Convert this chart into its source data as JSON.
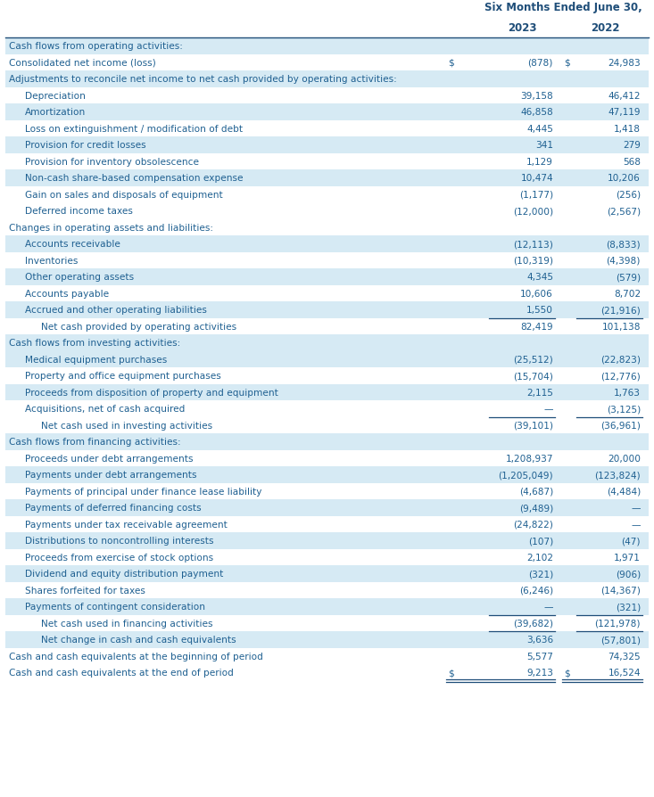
{
  "title_line1": "Six Months Ended June 30,",
  "col1_header": "2023",
  "col2_header": "2022",
  "text_color": "#1F6091",
  "header_color": "#1F4E79",
  "highlight_bg": "#D6EAF4",
  "white_bg": "#FFFFFF",
  "rows": [
    {
      "label": "Cash flows from operating activities:",
      "val1": "",
      "val2": "",
      "indent": 0,
      "highlight": true,
      "top_border": false,
      "bottom_border": false,
      "double_bottom": false,
      "dollar1": false,
      "dollar2": false
    },
    {
      "label": "Consolidated net income (loss)",
      "val1": "(878)",
      "val2": "24,983",
      "indent": 0,
      "highlight": false,
      "top_border": false,
      "bottom_border": false,
      "double_bottom": false,
      "dollar1": true,
      "dollar2": true
    },
    {
      "label": "Adjustments to reconcile net income to net cash provided by operating activities:",
      "val1": "",
      "val2": "",
      "indent": 0,
      "highlight": true,
      "top_border": false,
      "bottom_border": false,
      "double_bottom": false,
      "dollar1": false,
      "dollar2": false
    },
    {
      "label": "Depreciation",
      "val1": "39,158",
      "val2": "46,412",
      "indent": 1,
      "highlight": false,
      "top_border": false,
      "bottom_border": false,
      "double_bottom": false,
      "dollar1": false,
      "dollar2": false
    },
    {
      "label": "Amortization",
      "val1": "46,858",
      "val2": "47,119",
      "indent": 1,
      "highlight": true,
      "top_border": false,
      "bottom_border": false,
      "double_bottom": false,
      "dollar1": false,
      "dollar2": false
    },
    {
      "label": "Loss on extinguishment / modification of debt",
      "val1": "4,445",
      "val2": "1,418",
      "indent": 1,
      "highlight": false,
      "top_border": false,
      "bottom_border": false,
      "double_bottom": false,
      "dollar1": false,
      "dollar2": false
    },
    {
      "label": "Provision for credit losses",
      "val1": "341",
      "val2": "279",
      "indent": 1,
      "highlight": true,
      "top_border": false,
      "bottom_border": false,
      "double_bottom": false,
      "dollar1": false,
      "dollar2": false
    },
    {
      "label": "Provision for inventory obsolescence",
      "val1": "1,129",
      "val2": "568",
      "indent": 1,
      "highlight": false,
      "top_border": false,
      "bottom_border": false,
      "double_bottom": false,
      "dollar1": false,
      "dollar2": false
    },
    {
      "label": "Non-cash share-based compensation expense",
      "val1": "10,474",
      "val2": "10,206",
      "indent": 1,
      "highlight": true,
      "top_border": false,
      "bottom_border": false,
      "double_bottom": false,
      "dollar1": false,
      "dollar2": false
    },
    {
      "label": "Gain on sales and disposals of equipment",
      "val1": "(1,177)",
      "val2": "(256)",
      "indent": 1,
      "highlight": false,
      "top_border": false,
      "bottom_border": false,
      "double_bottom": false,
      "dollar1": false,
      "dollar2": false
    },
    {
      "label": "Deferred income taxes",
      "val1": "(12,000)",
      "val2": "(2,567)",
      "indent": 1,
      "highlight": false,
      "top_border": false,
      "bottom_border": false,
      "double_bottom": false,
      "dollar1": false,
      "dollar2": false
    },
    {
      "label": "Changes in operating assets and liabilities:",
      "val1": "",
      "val2": "",
      "indent": 0,
      "highlight": false,
      "top_border": false,
      "bottom_border": false,
      "double_bottom": false,
      "dollar1": false,
      "dollar2": false
    },
    {
      "label": "Accounts receivable",
      "val1": "(12,113)",
      "val2": "(8,833)",
      "indent": 1,
      "highlight": true,
      "top_border": false,
      "bottom_border": false,
      "double_bottom": false,
      "dollar1": false,
      "dollar2": false
    },
    {
      "label": "Inventories",
      "val1": "(10,319)",
      "val2": "(4,398)",
      "indent": 1,
      "highlight": false,
      "top_border": false,
      "bottom_border": false,
      "double_bottom": false,
      "dollar1": false,
      "dollar2": false
    },
    {
      "label": "Other operating assets",
      "val1": "4,345",
      "val2": "(579)",
      "indent": 1,
      "highlight": true,
      "top_border": false,
      "bottom_border": false,
      "double_bottom": false,
      "dollar1": false,
      "dollar2": false
    },
    {
      "label": "Accounts payable",
      "val1": "10,606",
      "val2": "8,702",
      "indent": 1,
      "highlight": false,
      "top_border": false,
      "bottom_border": false,
      "double_bottom": false,
      "dollar1": false,
      "dollar2": false
    },
    {
      "label": "Accrued and other operating liabilities",
      "val1": "1,550",
      "val2": "(21,916)",
      "indent": 1,
      "highlight": true,
      "top_border": false,
      "bottom_border": false,
      "double_bottom": false,
      "dollar1": false,
      "dollar2": false
    },
    {
      "label": "Net cash provided by operating activities",
      "val1": "82,419",
      "val2": "101,138",
      "indent": 2,
      "highlight": false,
      "top_border": true,
      "bottom_border": false,
      "double_bottom": false,
      "dollar1": false,
      "dollar2": false
    },
    {
      "label": "Cash flows from investing activities:",
      "val1": "",
      "val2": "",
      "indent": 0,
      "highlight": true,
      "top_border": false,
      "bottom_border": false,
      "double_bottom": false,
      "dollar1": false,
      "dollar2": false
    },
    {
      "label": "Medical equipment purchases",
      "val1": "(25,512)",
      "val2": "(22,823)",
      "indent": 1,
      "highlight": true,
      "top_border": false,
      "bottom_border": false,
      "double_bottom": false,
      "dollar1": false,
      "dollar2": false
    },
    {
      "label": "Property and office equipment purchases",
      "val1": "(15,704)",
      "val2": "(12,776)",
      "indent": 1,
      "highlight": false,
      "top_border": false,
      "bottom_border": false,
      "double_bottom": false,
      "dollar1": false,
      "dollar2": false
    },
    {
      "label": "Proceeds from disposition of property and equipment",
      "val1": "2,115",
      "val2": "1,763",
      "indent": 1,
      "highlight": true,
      "top_border": false,
      "bottom_border": false,
      "double_bottom": false,
      "dollar1": false,
      "dollar2": false
    },
    {
      "label": "Acquisitions, net of cash acquired",
      "val1": "—",
      "val2": "(3,125)",
      "indent": 1,
      "highlight": false,
      "top_border": false,
      "bottom_border": false,
      "double_bottom": false,
      "dollar1": false,
      "dollar2": false
    },
    {
      "label": "Net cash used in investing activities",
      "val1": "(39,101)",
      "val2": "(36,961)",
      "indent": 2,
      "highlight": false,
      "top_border": true,
      "bottom_border": false,
      "double_bottom": false,
      "dollar1": false,
      "dollar2": false
    },
    {
      "label": "Cash flows from financing activities:",
      "val1": "",
      "val2": "",
      "indent": 0,
      "highlight": true,
      "top_border": false,
      "bottom_border": false,
      "double_bottom": false,
      "dollar1": false,
      "dollar2": false
    },
    {
      "label": "Proceeds under debt arrangements",
      "val1": "1,208,937",
      "val2": "20,000",
      "indent": 1,
      "highlight": false,
      "top_border": false,
      "bottom_border": false,
      "double_bottom": false,
      "dollar1": false,
      "dollar2": false
    },
    {
      "label": "Payments under debt arrangements",
      "val1": "(1,205,049)",
      "val2": "(123,824)",
      "indent": 1,
      "highlight": true,
      "top_border": false,
      "bottom_border": false,
      "double_bottom": false,
      "dollar1": false,
      "dollar2": false
    },
    {
      "label": "Payments of principal under finance lease liability",
      "val1": "(4,687)",
      "val2": "(4,484)",
      "indent": 1,
      "highlight": false,
      "top_border": false,
      "bottom_border": false,
      "double_bottom": false,
      "dollar1": false,
      "dollar2": false
    },
    {
      "label": "Payments of deferred financing costs",
      "val1": "(9,489)",
      "val2": "—",
      "indent": 1,
      "highlight": true,
      "top_border": false,
      "bottom_border": false,
      "double_bottom": false,
      "dollar1": false,
      "dollar2": false
    },
    {
      "label": "Payments under tax receivable agreement",
      "val1": "(24,822)",
      "val2": "—",
      "indent": 1,
      "highlight": false,
      "top_border": false,
      "bottom_border": false,
      "double_bottom": false,
      "dollar1": false,
      "dollar2": false
    },
    {
      "label": "Distributions to noncontrolling interests",
      "val1": "(107)",
      "val2": "(47)",
      "indent": 1,
      "highlight": true,
      "top_border": false,
      "bottom_border": false,
      "double_bottom": false,
      "dollar1": false,
      "dollar2": false
    },
    {
      "label": "Proceeds from exercise of stock options",
      "val1": "2,102",
      "val2": "1,971",
      "indent": 1,
      "highlight": false,
      "top_border": false,
      "bottom_border": false,
      "double_bottom": false,
      "dollar1": false,
      "dollar2": false
    },
    {
      "label": "Dividend and equity distribution payment",
      "val1": "(321)",
      "val2": "(906)",
      "indent": 1,
      "highlight": true,
      "top_border": false,
      "bottom_border": false,
      "double_bottom": false,
      "dollar1": false,
      "dollar2": false
    },
    {
      "label": "Shares forfeited for taxes",
      "val1": "(6,246)",
      "val2": "(14,367)",
      "indent": 1,
      "highlight": false,
      "top_border": false,
      "bottom_border": false,
      "double_bottom": false,
      "dollar1": false,
      "dollar2": false
    },
    {
      "label": "Payments of contingent consideration",
      "val1": "—",
      "val2": "(321)",
      "indent": 1,
      "highlight": true,
      "top_border": false,
      "bottom_border": false,
      "double_bottom": false,
      "dollar1": false,
      "dollar2": false
    },
    {
      "label": "Net cash used in financing activities",
      "val1": "(39,682)",
      "val2": "(121,978)",
      "indent": 2,
      "highlight": false,
      "top_border": true,
      "bottom_border": false,
      "double_bottom": false,
      "dollar1": false,
      "dollar2": false
    },
    {
      "label": "Net change in cash and cash equivalents",
      "val1": "3,636",
      "val2": "(57,801)",
      "indent": 2,
      "highlight": true,
      "top_border": true,
      "bottom_border": false,
      "double_bottom": false,
      "dollar1": false,
      "dollar2": false
    },
    {
      "label": "Cash and cash equivalents at the beginning of period",
      "val1": "5,577",
      "val2": "74,325",
      "indent": 0,
      "highlight": false,
      "top_border": false,
      "bottom_border": false,
      "double_bottom": false,
      "dollar1": false,
      "dollar2": false
    },
    {
      "label": "Cash and cash equivalents at the end of period",
      "val1": "9,213",
      "val2": "16,524",
      "indent": 0,
      "highlight": false,
      "top_border": false,
      "bottom_border": false,
      "double_bottom": true,
      "dollar1": true,
      "dollar2": true
    }
  ]
}
